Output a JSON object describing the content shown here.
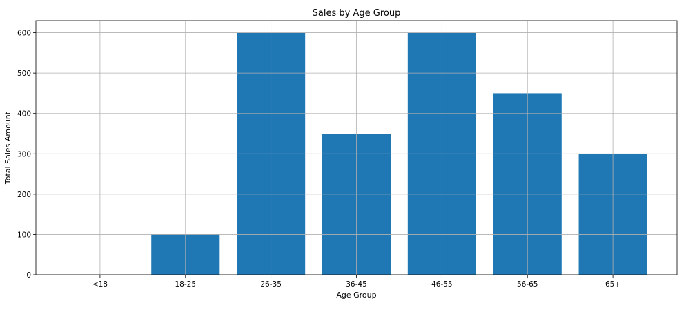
{
  "chart_data": {
    "type": "bar",
    "title": "Sales by Age Group",
    "xlabel": "Age Group",
    "ylabel": "Total Sales Amount",
    "categories": [
      "<18",
      "18-25",
      "26-35",
      "36-45",
      "46-55",
      "56-65",
      "65+"
    ],
    "values": [
      0,
      100,
      600,
      350,
      600,
      450,
      300
    ],
    "ylim": [
      0,
      630
    ],
    "yticks": [
      0,
      100,
      200,
      300,
      400,
      500,
      600
    ],
    "grid": true,
    "bar_color": "#1f77b4"
  }
}
